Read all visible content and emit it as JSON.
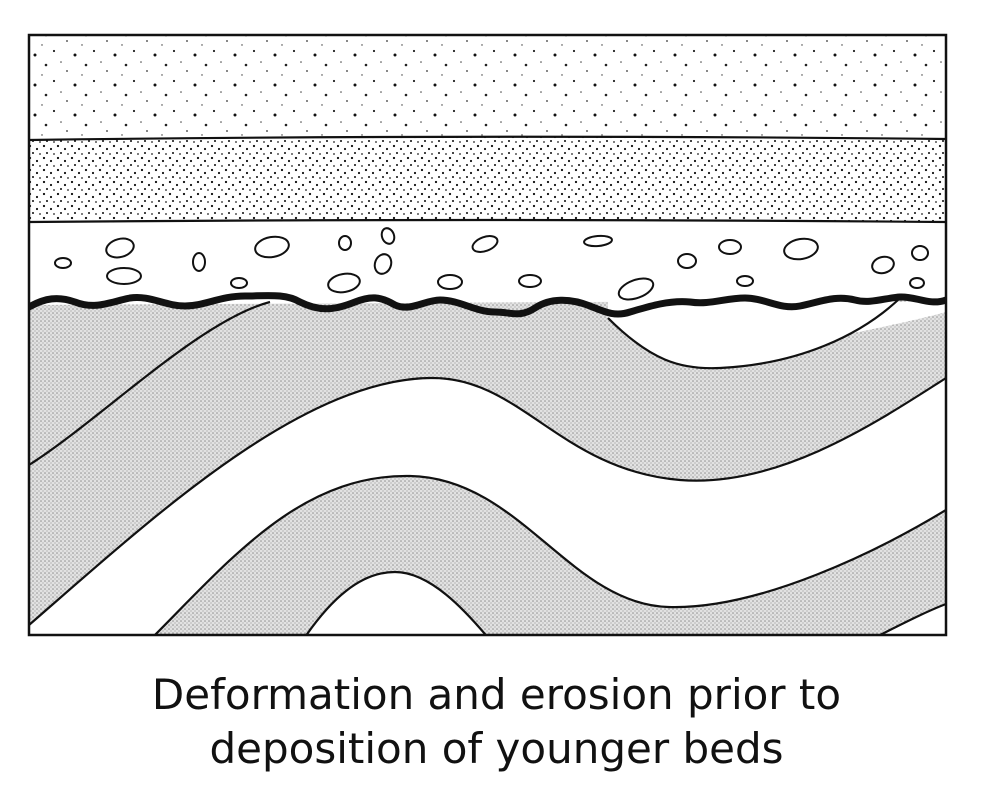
{
  "caption": {
    "line1": "Deformation and erosion prior to",
    "line2": "deposition of younger beds"
  },
  "colors": {
    "ink": "#111111",
    "paper": "#ffffff",
    "folded_bed_fill": "#d6d6d6"
  }
}
